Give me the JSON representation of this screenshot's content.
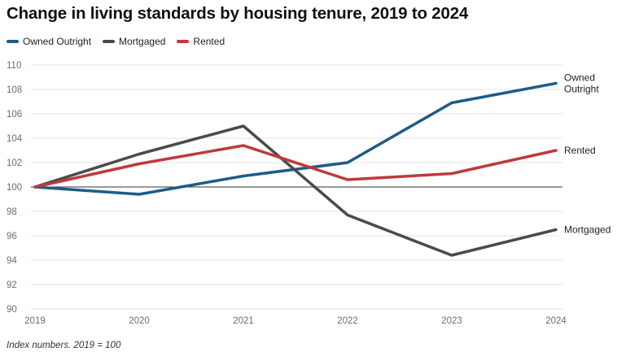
{
  "chart_data": {
    "type": "line",
    "title": "Change in living standards by housing tenure, 2019 to 2024",
    "x": [
      "2019",
      "2020",
      "2021",
      "2022",
      "2023",
      "2024"
    ],
    "ylim": [
      90,
      110
    ],
    "yticks": [
      "90",
      "92",
      "94",
      "96",
      "98",
      "100",
      "102",
      "104",
      "106",
      "108",
      "110"
    ],
    "grid": true,
    "reference_line": 100,
    "legend_position": "top-left",
    "series": [
      {
        "name": "Owned Outright",
        "color": "#1d5c87",
        "values": [
          100,
          99.4,
          100.9,
          102.0,
          106.9,
          108.5
        ],
        "end_label": [
          "Owned",
          "Outright"
        ]
      },
      {
        "name": "Mortgaged",
        "color": "#4a4a4a",
        "values": [
          100,
          102.7,
          105.0,
          97.7,
          94.4,
          96.5
        ],
        "end_label": [
          "Mortgaged"
        ]
      },
      {
        "name": "Rented",
        "color": "#c0393b",
        "values": [
          100,
          101.9,
          103.4,
          100.6,
          101.1,
          103.0
        ],
        "end_label": [
          "Rented"
        ]
      }
    ],
    "footnote": "Index numbers. 2019 = 100"
  }
}
